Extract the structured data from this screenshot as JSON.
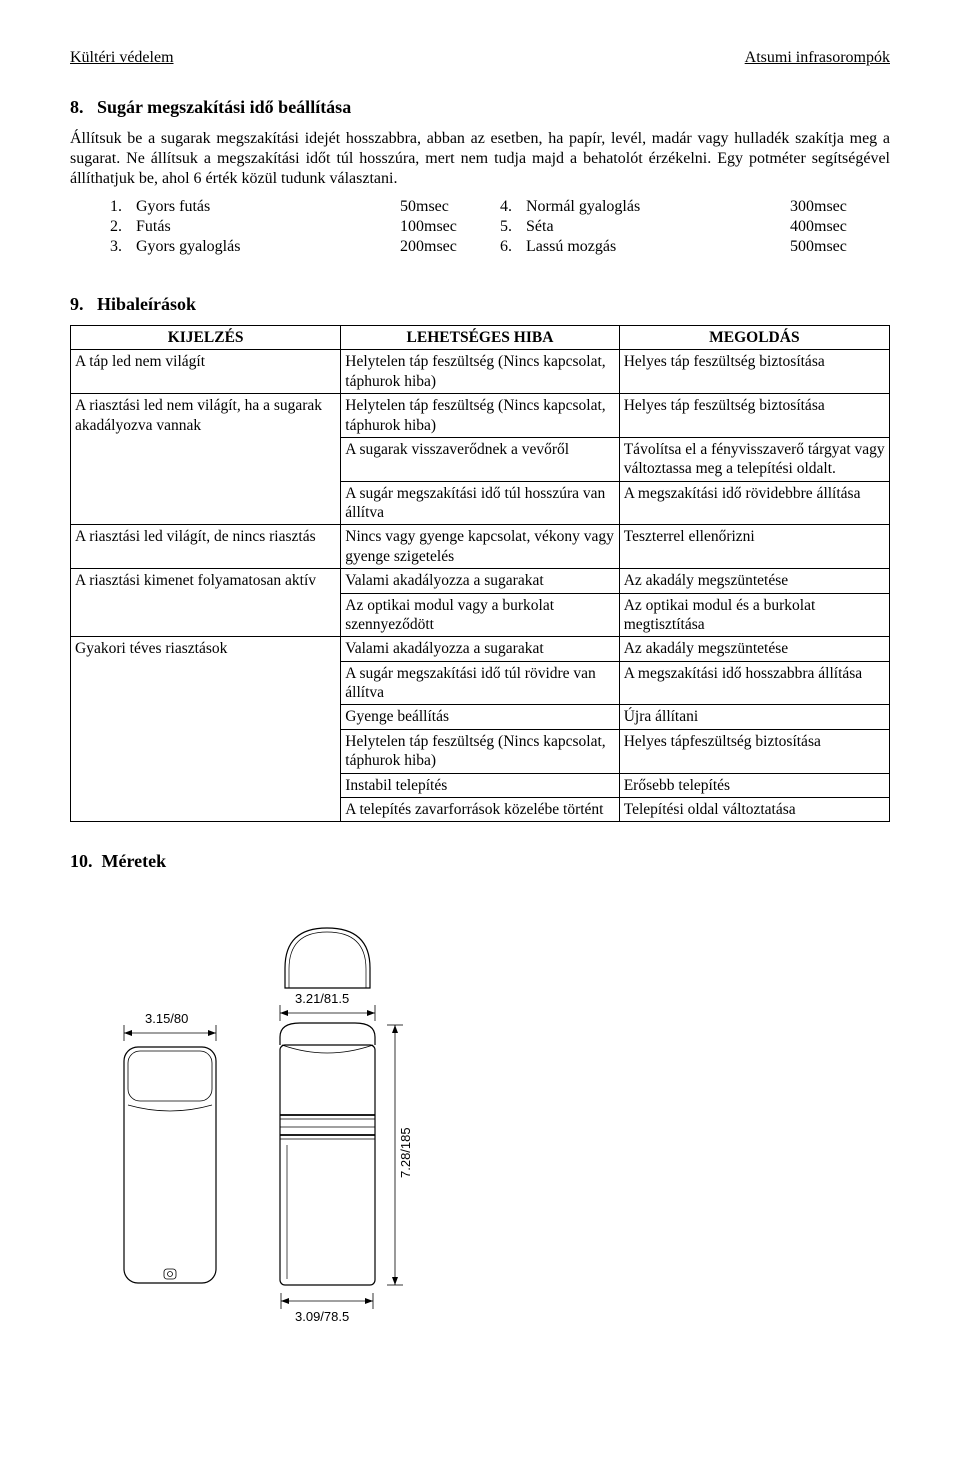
{
  "header": {
    "left": "Kültéri védelem",
    "right": "Atsumi infrasorompók"
  },
  "section8": {
    "number": "8.",
    "title": "Sugár megszakítási idő beállítása",
    "para": "Állítsuk be a sugarak megszakítási idejét hosszabbra, abban az esetben, ha papír, levél, madár vagy hulladék szakítja meg a sugarat. Ne állítsuk a megszakítási időt túl hosszúra, mert nem tudja majd a behatolót érzékelni. Egy potméter segítségével állíthatjuk be, ahol 6 érték közül tudunk választani.",
    "left": [
      {
        "n": "1.",
        "label": "Gyors futás",
        "val": "50msec"
      },
      {
        "n": "2.",
        "label": "Futás",
        "val": "100msec"
      },
      {
        "n": "3.",
        "label": "Gyors gyaloglás",
        "val": "200msec"
      }
    ],
    "right": [
      {
        "n": "4.",
        "label": "Normál gyaloglás",
        "val": "300msec"
      },
      {
        "n": "5.",
        "label": "Séta",
        "val": "400msec"
      },
      {
        "n": "6.",
        "label": "Lassú mozgás",
        "val": "500msec"
      }
    ]
  },
  "section9": {
    "number": "9.",
    "title": "Hibaleírások",
    "headers": {
      "a": "KIJELZÉS",
      "b": "LEHETSÉGES HIBA",
      "c": "MEGOLDÁS"
    },
    "rows": [
      {
        "a": "A táp led nem világít",
        "b": "Helytelen táp feszültség (Nincs kapcsolat, táphurok hiba)",
        "c": "Helyes táp feszültség biztosítása",
        "aspan": 1
      },
      {
        "a": "A riasztási led nem világít, ha a sugarak akadályozva vannak",
        "b": "Helytelen táp feszültség (Nincs kapcsolat, táphurok hiba)",
        "c": "Helyes táp feszültség biztosítása",
        "aspan": 3
      },
      {
        "b": "A sugarak visszaverődnek a vevőről",
        "c": "Távolítsa el a fényvisszaverő tárgyat vagy változtassa meg a telepítési oldalt."
      },
      {
        "b": "A sugár megszakítási idő túl hosszúra van állítva",
        "c": "A megszakítási idő rövidebbre állítása"
      },
      {
        "a": "A riasztási led világít, de nincs riasztás",
        "b": "Nincs vagy gyenge kapcsolat, vékony vagy gyenge szigetelés",
        "c": "Teszterrel ellenőrizni",
        "aspan": 1
      },
      {
        "a": "A riasztási kimenet folyamatosan aktív",
        "b": "Valami akadályozza a sugarakat",
        "c": "Az akadály megszüntetése",
        "aspan": 2
      },
      {
        "b": "Az optikai modul vagy a burkolat szennyeződött",
        "c": "Az optikai modul és a burkolat megtisztítása"
      },
      {
        "a": "Gyakori téves riasztások",
        "b": "Valami akadályozza a sugarakat",
        "c": "Az akadály megszüntetése",
        "aspan": 6
      },
      {
        "b": "A sugár megszakítási idő túl rövidre van állítva",
        "c": "A megszakítási idő hosszabbra állítása"
      },
      {
        "b": "Gyenge beállítás",
        "c": "Újra állítani"
      },
      {
        "b": "Helytelen táp feszültség (Nincs kapcsolat, táphurok hiba)",
        "c": "Helyes tápfeszültség biztosítása"
      },
      {
        "b": "Instabil telepítés",
        "c": "Erősebb telepítés"
      },
      {
        "b": "A telepítés zavarforrások közelébe történt",
        "c": "Telepítési oldal változtatása"
      }
    ]
  },
  "section10": {
    "number": "10.",
    "title": "Méretek"
  },
  "dims": {
    "left_width": "3.15/80",
    "right_width": "3.21/81.5",
    "height": "7.28/185",
    "bottom": "3.09/78.5"
  },
  "colors": {
    "stroke": "#000000",
    "fill": "#ffffff"
  }
}
